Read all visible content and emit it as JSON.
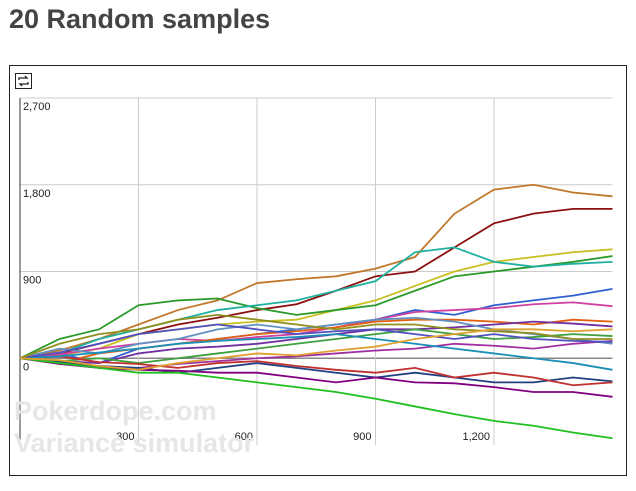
{
  "chart_data": {
    "type": "line",
    "title": "20 Random samples",
    "annotations": [
      "Pokerdope.com",
      "Variance simulator"
    ],
    "x": [
      0,
      100,
      200,
      300,
      400,
      500,
      600,
      700,
      800,
      900,
      1000,
      1100,
      1200,
      1300,
      1400,
      1500
    ],
    "xlim": [
      0,
      1500
    ],
    "xticks": [
      300,
      600,
      900,
      {
        "value": 1200,
        "label": "1,200"
      }
    ],
    "ylim": [
      -900,
      2700
    ],
    "yticks": [
      0,
      900,
      {
        "value": 1800,
        "label": "1,800"
      },
      {
        "value": 2700,
        "label": "2,700"
      }
    ],
    "grid": true,
    "series": [
      {
        "color": "#c0782b",
        "values": [
          0,
          80,
          200,
          350,
          500,
          600,
          780,
          820,
          850,
          930,
          1050,
          1500,
          1750,
          1800,
          1720,
          1680
        ]
      },
      {
        "color": "#8b1010",
        "values": [
          0,
          50,
          150,
          250,
          350,
          420,
          500,
          560,
          700,
          850,
          900,
          1150,
          1400,
          1500,
          1550,
          1550
        ]
      },
      {
        "color": "#c8c020",
        "values": [
          0,
          30,
          100,
          250,
          300,
          350,
          380,
          400,
          500,
          600,
          750,
          900,
          1000,
          1050,
          1100,
          1130
        ]
      },
      {
        "color": "#2a9a2a",
        "values": [
          0,
          200,
          300,
          550,
          600,
          620,
          520,
          450,
          500,
          550,
          700,
          850,
          900,
          950,
          1000,
          1060
        ]
      },
      {
        "color": "#20b0a0",
        "values": [
          0,
          50,
          200,
          300,
          400,
          500,
          550,
          600,
          700,
          800,
          1100,
          1150,
          1000,
          950,
          980,
          1000
        ]
      },
      {
        "color": "#3060d0",
        "values": [
          0,
          50,
          -50,
          100,
          150,
          200,
          250,
          300,
          350,
          400,
          500,
          450,
          550,
          600,
          650,
          720
        ]
      },
      {
        "color": "#d040a0",
        "values": [
          0,
          40,
          100,
          150,
          200,
          180,
          220,
          250,
          320,
          400,
          480,
          500,
          520,
          560,
          580,
          540
        ]
      },
      {
        "color": "#e06010",
        "values": [
          0,
          -50,
          50,
          100,
          150,
          200,
          250,
          280,
          320,
          380,
          400,
          400,
          380,
          350,
          400,
          380
        ]
      },
      {
        "color": "#7030a0",
        "values": [
          0,
          -30,
          -50,
          50,
          100,
          120,
          150,
          200,
          250,
          300,
          300,
          320,
          350,
          380,
          360,
          330
        ]
      },
      {
        "color": "#6090c0",
        "values": [
          0,
          100,
          50,
          150,
          200,
          300,
          350,
          300,
          350,
          400,
          420,
          380,
          300,
          250,
          200,
          150
        ]
      },
      {
        "color": "#a030a0",
        "values": [
          0,
          -50,
          -100,
          -100,
          -60,
          -30,
          0,
          20,
          50,
          80,
          100,
          150,
          130,
          100,
          150,
          180
        ]
      },
      {
        "color": "#40a040",
        "values": [
          0,
          -30,
          0,
          -50,
          0,
          50,
          100,
          150,
          200,
          250,
          300,
          250,
          200,
          220,
          250,
          230
        ]
      },
      {
        "color": "#204080",
        "values": [
          0,
          -40,
          -80,
          -100,
          -150,
          -100,
          -50,
          -100,
          -150,
          -200,
          -150,
          -200,
          -250,
          -250,
          -200,
          -240
        ]
      },
      {
        "color": "#800080",
        "values": [
          0,
          -60,
          -100,
          -120,
          -130,
          -150,
          -150,
          -200,
          -250,
          -200,
          -250,
          -260,
          -300,
          -350,
          -350,
          -400
        ]
      },
      {
        "color": "#c03030",
        "values": [
          0,
          20,
          -40,
          -60,
          -100,
          -50,
          -30,
          -80,
          -120,
          -150,
          -100,
          -200,
          -150,
          -200,
          -280,
          -250
        ]
      },
      {
        "color": "#20c020",
        "values": [
          0,
          -50,
          -100,
          -150,
          -150,
          -200,
          -250,
          -300,
          -350,
          -420,
          -500,
          -580,
          -650,
          -700,
          -770,
          -830
        ]
      },
      {
        "color": "#1a8fb5",
        "values": [
          0,
          20,
          60,
          100,
          150,
          180,
          200,
          220,
          250,
          200,
          150,
          100,
          50,
          0,
          -50,
          -120
        ]
      },
      {
        "color": "#5050c0",
        "values": [
          0,
          60,
          150,
          250,
          300,
          350,
          300,
          250,
          280,
          300,
          250,
          200,
          250,
          200,
          180,
          170
        ]
      },
      {
        "color": "#909020",
        "values": [
          0,
          150,
          250,
          300,
          400,
          450,
          400,
          350,
          300,
          350,
          350,
          300,
          280,
          260,
          200,
          200
        ]
      },
      {
        "color": "#e0a030",
        "values": [
          0,
          -20,
          -80,
          -120,
          -50,
          0,
          50,
          30,
          80,
          120,
          200,
          250,
          300,
          300,
          280,
          300
        ]
      }
    ]
  }
}
